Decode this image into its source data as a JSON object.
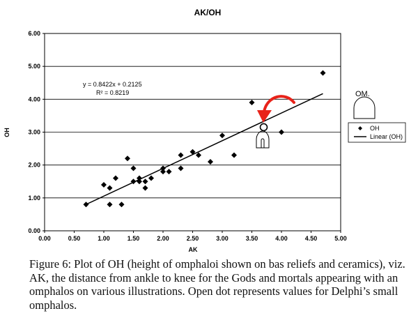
{
  "chart_data": {
    "type": "scatter",
    "title": "AK/OH",
    "xlabel": "AK",
    "ylabel": "OH",
    "xlim": [
      0,
      5
    ],
    "ylim": [
      0,
      6
    ],
    "x_ticks": [
      "0.00",
      "0.50",
      "1.00",
      "1.50",
      "2.00",
      "2.50",
      "3.00",
      "3.50",
      "4.00",
      "4.50",
      "5.00"
    ],
    "y_ticks": [
      "0.00",
      "1.00",
      "2.00",
      "3.00",
      "4.00",
      "5.00",
      "6.00"
    ],
    "grid": "horizontal",
    "series": [
      {
        "name": "OH",
        "marker": "diamond",
        "points": [
          [
            0.7,
            0.8
          ],
          [
            1.0,
            1.4
          ],
          [
            1.1,
            1.3
          ],
          [
            1.1,
            0.8
          ],
          [
            1.2,
            1.6
          ],
          [
            1.3,
            0.8
          ],
          [
            1.4,
            2.2
          ],
          [
            1.5,
            1.9
          ],
          [
            1.5,
            1.5
          ],
          [
            1.6,
            1.6
          ],
          [
            1.6,
            1.5
          ],
          [
            1.7,
            1.5
          ],
          [
            1.7,
            1.3
          ],
          [
            1.8,
            1.6
          ],
          [
            2.0,
            1.9
          ],
          [
            2.0,
            1.8
          ],
          [
            2.1,
            1.8
          ],
          [
            2.3,
            2.3
          ],
          [
            2.3,
            1.9
          ],
          [
            2.5,
            2.4
          ],
          [
            2.6,
            2.3
          ],
          [
            2.8,
            2.1
          ],
          [
            3.0,
            2.9
          ],
          [
            3.2,
            2.3
          ],
          [
            3.5,
            3.9
          ],
          [
            4.0,
            3.0
          ],
          [
            4.7,
            4.8
          ]
        ]
      },
      {
        "name": "Linear (OH)",
        "type": "line",
        "slope": 0.8422,
        "intercept": 0.2125,
        "x_range": [
          0.7,
          4.7
        ]
      }
    ],
    "highlight_point": {
      "label": "Delphi's small omphalos",
      "x": 3.7,
      "y": 3.15,
      "marker": "open-circle"
    },
    "annotations": {
      "equation": "y = 0.8422x + 0.2125",
      "r_squared": "R² = 0.8219",
      "omphalos_label": "OM."
    },
    "legend_position": "right"
  },
  "colors": {
    "arrow": "#e8231a",
    "marker": "#000000",
    "grid": "#000000"
  },
  "caption": "Figure 6: Plot of OH (height of omphaloi shown on bas reliefs and ceramics), viz. AK, the distance from ankle to knee for the Gods and mortals appearing with an omphalos on various illustrations. Open dot represents values for Delphi’s small omphalos."
}
